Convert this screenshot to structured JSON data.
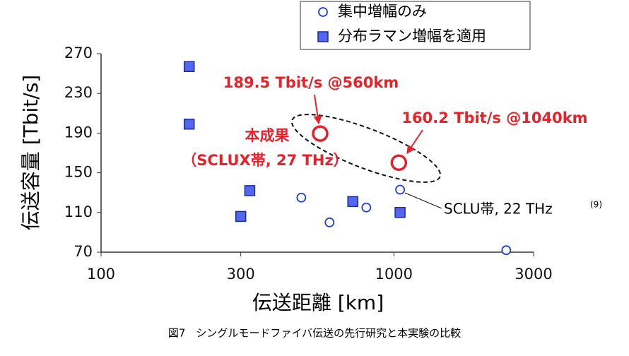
{
  "chart_data": {
    "type": "scatter",
    "xlabel": "伝送距離 [km]",
    "ylabel": "伝送容量 [Tbit/s]",
    "xscale": "log",
    "xlim": [
      100,
      3000
    ],
    "xticks": [
      100,
      300,
      1000,
      3000
    ],
    "ylim": [
      70,
      270
    ],
    "yticks": [
      70,
      110,
      150,
      190,
      230,
      270
    ],
    "series": [
      {
        "name": "集中増幅のみ",
        "marker": "circle",
        "color": "#1f3fd0",
        "x": [
          483,
          603,
          805,
          1050,
          2420
        ],
        "values": [
          125,
          100,
          115,
          133,
          72
        ]
      },
      {
        "name": "分布ラマン増幅を適用",
        "marker": "square",
        "color": "#5566ee",
        "x": [
          200,
          200,
          322,
          300,
          724,
          1050
        ],
        "values": [
          257,
          199,
          132,
          106,
          121,
          110
        ]
      }
    ],
    "highlight": {
      "color": "#e8202a",
      "x": [
        560,
        1040
      ],
      "values": [
        189.5,
        160.2
      ],
      "labels": [
        "189.5 Tbit/s @560km",
        "160.2 Tbit/s @1040km"
      ]
    },
    "annotations": [
      "本成果",
      "（SCLUX帯, 27 THz）",
      "SCLU帯, 22 THz",
      "(9)"
    ],
    "caption": "図7　シングルモードファイバ伝送の先行研究と本実験の比較"
  }
}
